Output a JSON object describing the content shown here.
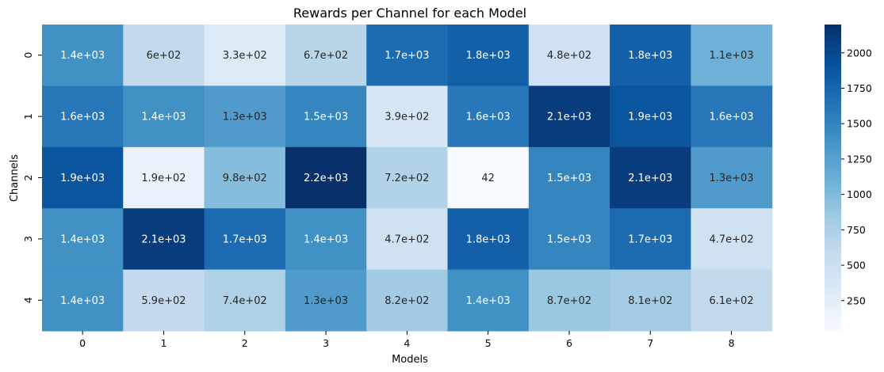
{
  "chart_data": {
    "type": "heatmap",
    "title": "Rewards per Channel for each Model",
    "xlabel": "Models",
    "ylabel": "Channels",
    "x_categories": [
      "0",
      "1",
      "2",
      "3",
      "4",
      "5",
      "6",
      "7",
      "8"
    ],
    "y_categories": [
      "0",
      "1",
      "2",
      "3",
      "4"
    ],
    "values": [
      [
        1400,
        600,
        330,
        670,
        1700,
        1800,
        480,
        1800,
        1100
      ],
      [
        1600,
        1400,
        1300,
        1500,
        390,
        1600,
        2100,
        1900,
        1600
      ],
      [
        1900,
        190,
        980,
        2200,
        720,
        42,
        1500,
        2100,
        1300
      ],
      [
        1400,
        2100,
        1700,
        1400,
        470,
        1800,
        1500,
        1700,
        470
      ],
      [
        1400,
        590,
        740,
        1300,
        820,
        1400,
        870,
        810,
        610
      ]
    ],
    "cell_labels": [
      [
        "1.4e+03",
        "6e+02",
        "3.3e+02",
        "6.7e+02",
        "1.7e+03",
        "1.8e+03",
        "4.8e+02",
        "1.8e+03",
        "1.1e+03"
      ],
      [
        "1.6e+03",
        "1.4e+03",
        "1.3e+03",
        "1.5e+03",
        "3.9e+02",
        "1.6e+03",
        "2.1e+03",
        "1.9e+03",
        "1.6e+03"
      ],
      [
        "1.9e+03",
        "1.9e+02",
        "9.8e+02",
        "2.2e+03",
        "7.2e+02",
        "42",
        "1.5e+03",
        "2.1e+03",
        "1.3e+03"
      ],
      [
        "1.4e+03",
        "2.1e+03",
        "1.7e+03",
        "1.4e+03",
        "4.7e+02",
        "1.8e+03",
        "1.5e+03",
        "1.7e+03",
        "4.7e+02"
      ],
      [
        "1.4e+03",
        "5.9e+02",
        "7.4e+02",
        "1.3e+03",
        "8.2e+02",
        "1.4e+03",
        "8.7e+02",
        "8.1e+02",
        "6.1e+02"
      ]
    ],
    "color_scale": {
      "name": "Blues",
      "vmin": 42,
      "vmax": 2200,
      "stops": [
        "#f7fbff",
        "#deebf7",
        "#c6dbef",
        "#9ecae1",
        "#6baed6",
        "#4292c6",
        "#2171b5",
        "#08519c",
        "#08306b"
      ]
    },
    "colorbar_ticks": [
      250,
      500,
      750,
      1000,
      1250,
      1500,
      1750,
      2000
    ],
    "colorbar_tick_labels": [
      "250",
      "500",
      "750",
      "1000",
      "1250",
      "1500",
      "1750",
      "2000"
    ]
  }
}
